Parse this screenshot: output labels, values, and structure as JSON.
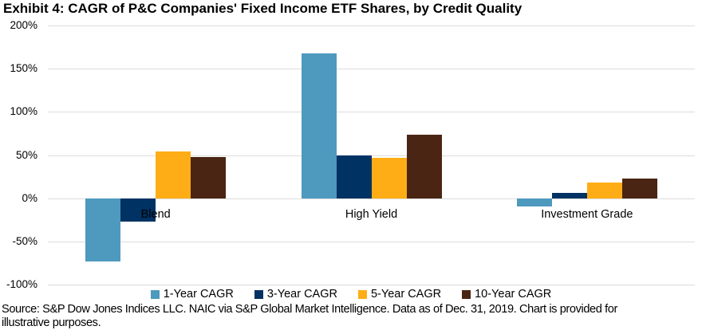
{
  "title": "Exhibit 4: CAGR of P&C Companies' Fixed Income ETF Shares, by Credit Quality",
  "source_line1": "Source: S&P Dow Jones Indices LLC. NAIC via S&P Global Market Intelligence. Data as of Dec. 31, 2019. Chart is provided for",
  "source_line2": "illustrative purposes.",
  "chart_data": {
    "type": "bar",
    "title": "Exhibit 4: CAGR of P&C Companies' Fixed Income ETF Shares, by Credit Quality",
    "categories": [
      "Blend",
      "High Yield",
      "Investment Grade"
    ],
    "series": [
      {
        "name": "1-Year CAGR",
        "color": "#4E99BE",
        "values": [
          -73,
          168,
          -10
        ]
      },
      {
        "name": "3-Year CAGR",
        "color": "#003263",
        "values": [
          -27,
          50,
          6
        ]
      },
      {
        "name": "5-Year CAGR",
        "color": "#FFAD16",
        "values": [
          54,
          47,
          18
        ]
      },
      {
        "name": "10-Year CAGR",
        "color": "#4A2513",
        "values": [
          48,
          74,
          23
        ]
      }
    ],
    "xlabel": "",
    "ylabel": "",
    "ylim": [
      -100,
      200
    ],
    "ytick_step": 50,
    "ytick_suffix": "%",
    "grid": true,
    "gridline_color": "#DCDCDC",
    "legend_position": "bottom"
  }
}
